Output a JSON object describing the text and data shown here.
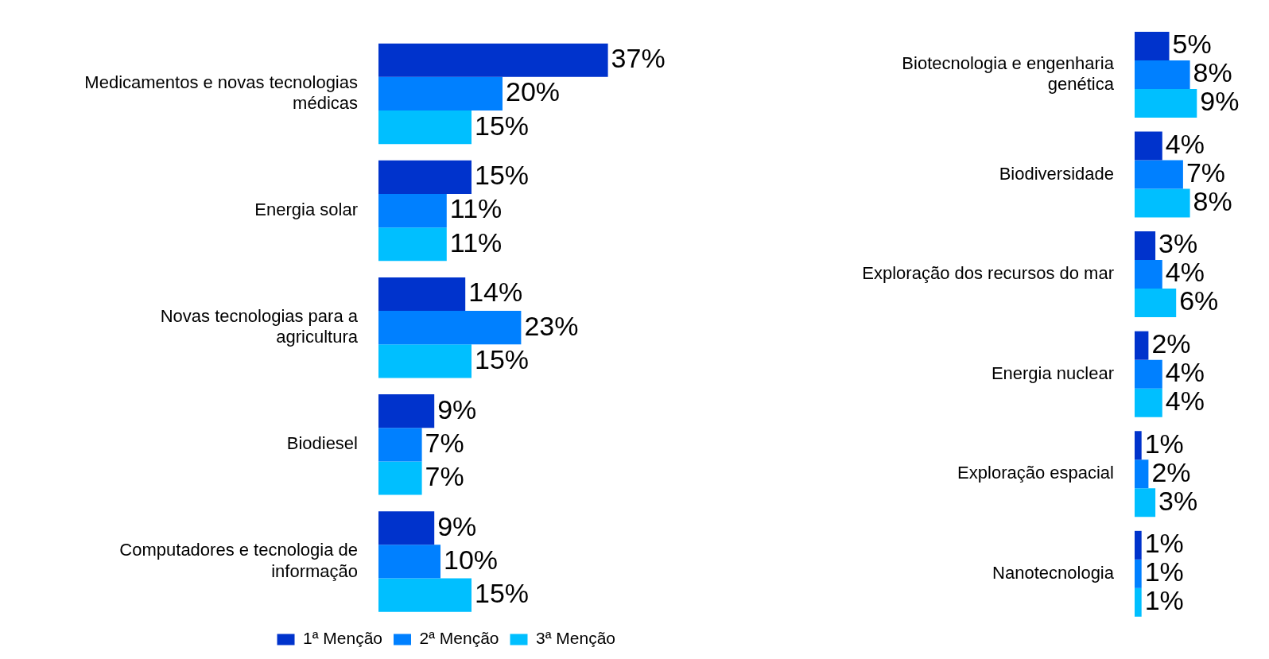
{
  "chart_data": [
    {
      "type": "bar",
      "orientation": "horizontal",
      "categories": [
        "Medicamentos e novas tecnologias médicas",
        "Energia solar",
        "Novas tecnologias para a agricultura",
        "Biodiesel",
        "Computadores e tecnologia de informação"
      ],
      "legend": "bottom",
      "series": [
        {
          "name": "1ª Menção",
          "color": "#0033cc",
          "values": [
            37,
            15,
            14,
            9,
            9
          ],
          "value_labels": [
            "37%",
            "15%",
            "14%",
            "9%",
            "9%"
          ]
        },
        {
          "name": "2ª Menção",
          "color": "#0080ff",
          "values": [
            20,
            11,
            23,
            7,
            10
          ],
          "value_labels": [
            "20%",
            "11%",
            "23%",
            "7%",
            "10%"
          ]
        },
        {
          "name": "3ª Menção",
          "color": "#00bfff",
          "values": [
            15,
            11,
            15,
            7,
            15
          ],
          "value_labels": [
            "15%",
            "11%",
            "15%",
            "7%",
            "15%"
          ]
        }
      ]
    },
    {
      "type": "bar",
      "orientation": "horizontal",
      "categories": [
        "Biotecnologia e engenharia genética",
        "Biodiversidade",
        "Exploração dos recursos do mar",
        "Energia nuclear",
        "Exploração espacial",
        "Nanotecnologia"
      ],
      "series": [
        {
          "color": "#0033cc",
          "values": [
            5,
            4,
            3,
            2,
            1,
            1
          ],
          "value_labels": [
            "5%",
            "4%",
            "3%",
            "2%",
            "1%",
            "1%"
          ]
        },
        {
          "color": "#0080ff",
          "values": [
            8,
            7,
            4,
            4,
            2,
            1
          ],
          "value_labels": [
            "8%",
            "7%",
            "4%",
            "4%",
            "2%",
            "1%"
          ]
        },
        {
          "color": "#00bfff",
          "values": [
            9,
            8,
            6,
            4,
            3,
            1
          ],
          "value_labels": [
            "9%",
            "8%",
            "6%",
            "4%",
            "3%",
            "1%"
          ]
        }
      ]
    }
  ]
}
